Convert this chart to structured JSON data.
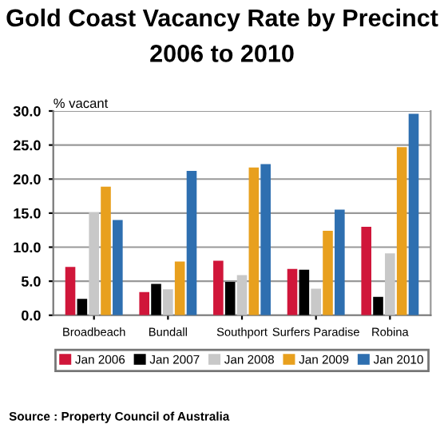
{
  "chart_data": {
    "type": "bar",
    "title": "Gold Coast Vacancy Rate by Precinct",
    "subtitle": "2006 to 2010",
    "ylabel": "% vacant",
    "categories": [
      "Broadbeach",
      "Bundall",
      "Southport",
      "Surfers Paradise",
      "Robina"
    ],
    "series": [
      {
        "name": "Jan 2006",
        "color": "#d0163a",
        "values": [
          7.1,
          3.4,
          8.0,
          6.8,
          13.0
        ]
      },
      {
        "name": "Jan 2007",
        "color": "#000000",
        "values": [
          2.4,
          4.6,
          4.9,
          6.7,
          2.7
        ]
      },
      {
        "name": "Jan 2008",
        "color": "#c8c8c8",
        "values": [
          15.1,
          3.8,
          5.9,
          3.9,
          9.1
        ]
      },
      {
        "name": "Jan 2009",
        "color": "#e8a01e",
        "values": [
          18.9,
          7.9,
          21.7,
          12.4,
          24.7
        ]
      },
      {
        "name": "Jan 2010",
        "color": "#2e6fb0",
        "values": [
          14.0,
          21.2,
          22.2,
          15.5,
          29.6
        ]
      }
    ],
    "ylim": [
      0,
      30
    ],
    "yticks": [
      {
        "value": 0,
        "label": "0.0"
      },
      {
        "value": 5,
        "label": "5.0"
      },
      {
        "value": 10,
        "label": "10.0"
      },
      {
        "value": 15,
        "label": "15.0"
      },
      {
        "value": 20,
        "label": "20.0"
      },
      {
        "value": 25,
        "label": "25.0"
      },
      {
        "value": 30,
        "label": "30.0"
      }
    ],
    "grid": "y",
    "legend": "bottom",
    "annotations": [
      "Source : Property Council of Australia"
    ]
  }
}
